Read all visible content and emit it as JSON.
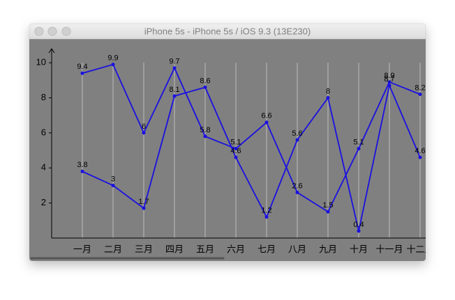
{
  "window": {
    "title": "iPhone 5s - iPhone 5s / iOS 9.3 (13E230)"
  },
  "chart_data": {
    "type": "line",
    "categories": [
      "一月",
      "二月",
      "三月",
      "四月",
      "五月",
      "六月",
      "七月",
      "八月",
      "九月",
      "十月",
      "十一月",
      "十二月"
    ],
    "series": [
      {
        "color": "#1a10e0",
        "values": [
          9.4,
          9.9,
          6,
          9.7,
          5.8,
          5.1,
          6.6,
          2.6,
          1.5,
          5.1,
          8.9,
          8.2
        ]
      },
      {
        "color": "#1a10e0",
        "values": [
          3.8,
          3,
          1.7,
          8.1,
          8.6,
          4.6,
          1.2,
          5.6,
          8,
          0.4,
          8.7,
          4.6
        ]
      }
    ],
    "ylim": [
      0,
      10.8
    ],
    "yticks": [
      2,
      4,
      6,
      8,
      10
    ],
    "grid": true
  }
}
